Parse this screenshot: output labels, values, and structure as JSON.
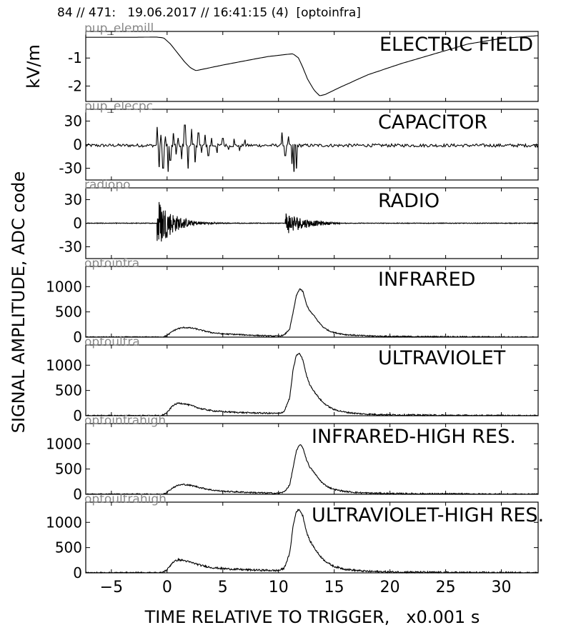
{
  "header": {
    "title": "84 // 471:   19.06.2017 // 16:41:15 (4)  [optoinfra]"
  },
  "chart_data": {
    "type": "line",
    "xlabel": "TIME RELATIVE TO TRIGGER,   x0.001 s",
    "ylabel_shared": "SIGNAL AMPLITUDE,  ADC code",
    "x_range": [
      -7.3,
      33.3
    ],
    "x_ticks": [
      -5,
      0,
      5,
      10,
      15,
      20,
      25,
      30
    ],
    "x_tick_labels": [
      "−5",
      "0",
      "5",
      "10",
      "15",
      "20",
      "25",
      "30"
    ],
    "panels": [
      {
        "id": "electric-field",
        "tag": "pup_elemill",
        "label": "ELECTRIC FIELD",
        "ylabel": "kV/m",
        "ylim": [
          -2.55,
          -0.05
        ],
        "yticks": [
          -1,
          -2
        ],
        "ytick_labels": [
          "-1",
          "-2"
        ],
        "noise": 0,
        "series": {
          "x": [
            -7.3,
            -3.0,
            -1.0,
            -0.3,
            0.3,
            1.0,
            1.6,
            2.1,
            2.6,
            3.2,
            5.0,
            7.0,
            9.0,
            10.5,
            11.3,
            11.8,
            12.2,
            12.6,
            13.2,
            13.7,
            14.2,
            15.5,
            18.0,
            21.0,
            24.0,
            27.0,
            30.0,
            33.3
          ],
          "y": [
            -0.26,
            -0.26,
            -0.25,
            -0.28,
            -0.5,
            -0.85,
            -1.15,
            -1.35,
            -1.45,
            -1.4,
            -1.25,
            -1.1,
            -0.95,
            -0.88,
            -0.85,
            -1.0,
            -1.35,
            -1.75,
            -2.15,
            -2.35,
            -2.3,
            -2.05,
            -1.6,
            -1.2,
            -0.85,
            -0.5,
            -0.3,
            -0.2
          ]
        }
      },
      {
        "id": "capacitor",
        "tag": "pup_elecpc",
        "label": "CAPACITOR",
        "ylim": [
          -45,
          45
        ],
        "yticks": [
          30,
          0,
          -30
        ],
        "ytick_labels": [
          "30",
          "0",
          "-30"
        ],
        "noise": 2,
        "series": {
          "x": [
            -0.9,
            -0.7,
            -0.55,
            -0.35,
            -0.15,
            0.1,
            0.3,
            0.55,
            0.8,
            1.0,
            1.3,
            1.6,
            1.9,
            2.2,
            2.5,
            2.8,
            3.1,
            3.4,
            3.7,
            4.0,
            4.5,
            5.0,
            5.5,
            6.0,
            6.5,
            7.0,
            10.3,
            10.6,
            10.9,
            11.2,
            11.4,
            11.6
          ],
          "y": [
            22,
            -28,
            12,
            -30,
            10,
            -34,
            -20,
            14,
            -12,
            8,
            -18,
            25,
            -30,
            20,
            -22,
            15,
            -10,
            12,
            -14,
            8,
            -10,
            8,
            -6,
            7,
            -8,
            6,
            15,
            -14,
            10,
            -24,
            -34,
            -30
          ]
        }
      },
      {
        "id": "radio",
        "tag": "radiopo",
        "label": "RADIO",
        "ylim": [
          -45,
          45
        ],
        "yticks": [
          30,
          0,
          -30
        ],
        "ytick_labels": [
          "30",
          "0",
          "-30"
        ],
        "noise": 0.4,
        "bursts": [
          {
            "t0": -0.9,
            "t1": 7.0,
            "amp": 35,
            "decay": 1.4
          },
          {
            "t0": 10.6,
            "t1": 15.5,
            "amp": 16,
            "decay": 1.8
          }
        ]
      },
      {
        "id": "infrared",
        "tag": "optoinfra",
        "label": "INFRARED",
        "ylim": [
          0,
          1400
        ],
        "yticks": [
          1000,
          500,
          0
        ],
        "ytick_labels": [
          "1000",
          "500",
          "0"
        ],
        "noise": 12,
        "series": {
          "x": [
            -7.3,
            -0.5,
            0,
            0.5,
            1,
            1.5,
            2,
            2.5,
            3,
            4,
            5,
            6,
            7,
            8,
            9,
            10,
            10.5,
            11,
            11.3,
            11.6,
            11.9,
            12.2,
            12.5,
            12.8,
            13.2,
            13.6,
            14,
            14.5,
            15,
            16,
            17,
            18,
            20,
            25,
            33.3
          ],
          "y": [
            0,
            0,
            30,
            120,
            170,
            190,
            185,
            170,
            140,
            90,
            65,
            55,
            45,
            35,
            25,
            20,
            40,
            160,
            480,
            820,
            960,
            900,
            650,
            520,
            420,
            300,
            200,
            130,
            90,
            50,
            35,
            25,
            15,
            8,
            0
          ]
        }
      },
      {
        "id": "ultraviolet",
        "tag": "optoultra",
        "label": "ULTRAVIOLET",
        "ylim": [
          0,
          1400
        ],
        "yticks": [
          1000,
          500,
          0
        ],
        "ytick_labels": [
          "1000",
          "500",
          "0"
        ],
        "noise": 14,
        "series": {
          "x": [
            -7.3,
            -0.5,
            0,
            0.5,
            1,
            1.5,
            2,
            2.5,
            3,
            4,
            5,
            6,
            7,
            8,
            9,
            10,
            10.5,
            11,
            11.3,
            11.6,
            11.9,
            12.2,
            12.5,
            12.8,
            13.2,
            13.6,
            14,
            14.5,
            15,
            16,
            17,
            18,
            20,
            25,
            33.3
          ],
          "y": [
            0,
            0,
            60,
            200,
            250,
            240,
            210,
            180,
            140,
            100,
            80,
            70,
            60,
            55,
            50,
            45,
            80,
            350,
            900,
            1200,
            1230,
            1100,
            800,
            620,
            480,
            360,
            260,
            180,
            120,
            70,
            45,
            30,
            18,
            8,
            0
          ]
        }
      },
      {
        "id": "infrared-high",
        "tag": "optoinfrahigh",
        "label": "INFRARED-HIGH RES.",
        "ylim": [
          0,
          1400
        ],
        "yticks": [
          1000,
          500,
          0
        ],
        "ytick_labels": [
          "1000",
          "500",
          "0"
        ],
        "noise": 14,
        "series": {
          "x": [
            -7.3,
            -0.5,
            0,
            0.5,
            1,
            1.5,
            2,
            2.5,
            3,
            4,
            5,
            6,
            7,
            8,
            9,
            10,
            10.5,
            11,
            11.3,
            11.6,
            11.9,
            12.2,
            12.5,
            12.8,
            13.2,
            13.6,
            14,
            14.5,
            15,
            16,
            17,
            18,
            20,
            25,
            33.3
          ],
          "y": [
            0,
            0,
            40,
            130,
            180,
            195,
            180,
            160,
            130,
            85,
            60,
            50,
            40,
            32,
            25,
            20,
            45,
            180,
            520,
            850,
            990,
            920,
            690,
            540,
            430,
            310,
            210,
            140,
            95,
            55,
            35,
            25,
            15,
            8,
            0
          ]
        }
      },
      {
        "id": "ultraviolet-high",
        "tag": "optoultrahigh",
        "label": "ULTRAVIOLET-HIGH RES.",
        "ylim": [
          0,
          1400
        ],
        "yticks": [
          1000,
          500,
          0
        ],
        "ytick_labels": [
          "1000",
          "500",
          "0"
        ],
        "noise": 18,
        "series": {
          "x": [
            -7.3,
            -0.5,
            0,
            0.5,
            1,
            1.5,
            2,
            2.5,
            3,
            4,
            5,
            6,
            7,
            8,
            9,
            10,
            10.5,
            11,
            11.3,
            11.6,
            11.9,
            12.2,
            12.5,
            12.8,
            13.2,
            13.6,
            14,
            14.5,
            15,
            16,
            17,
            18,
            20,
            25,
            33.3
          ],
          "y": [
            0,
            0,
            60,
            210,
            260,
            245,
            215,
            185,
            150,
            105,
            85,
            72,
            62,
            55,
            50,
            45,
            90,
            380,
            920,
            1220,
            1250,
            1120,
            820,
            640,
            500,
            370,
            270,
            185,
            125,
            72,
            46,
            30,
            18,
            8,
            0
          ]
        }
      }
    ]
  }
}
